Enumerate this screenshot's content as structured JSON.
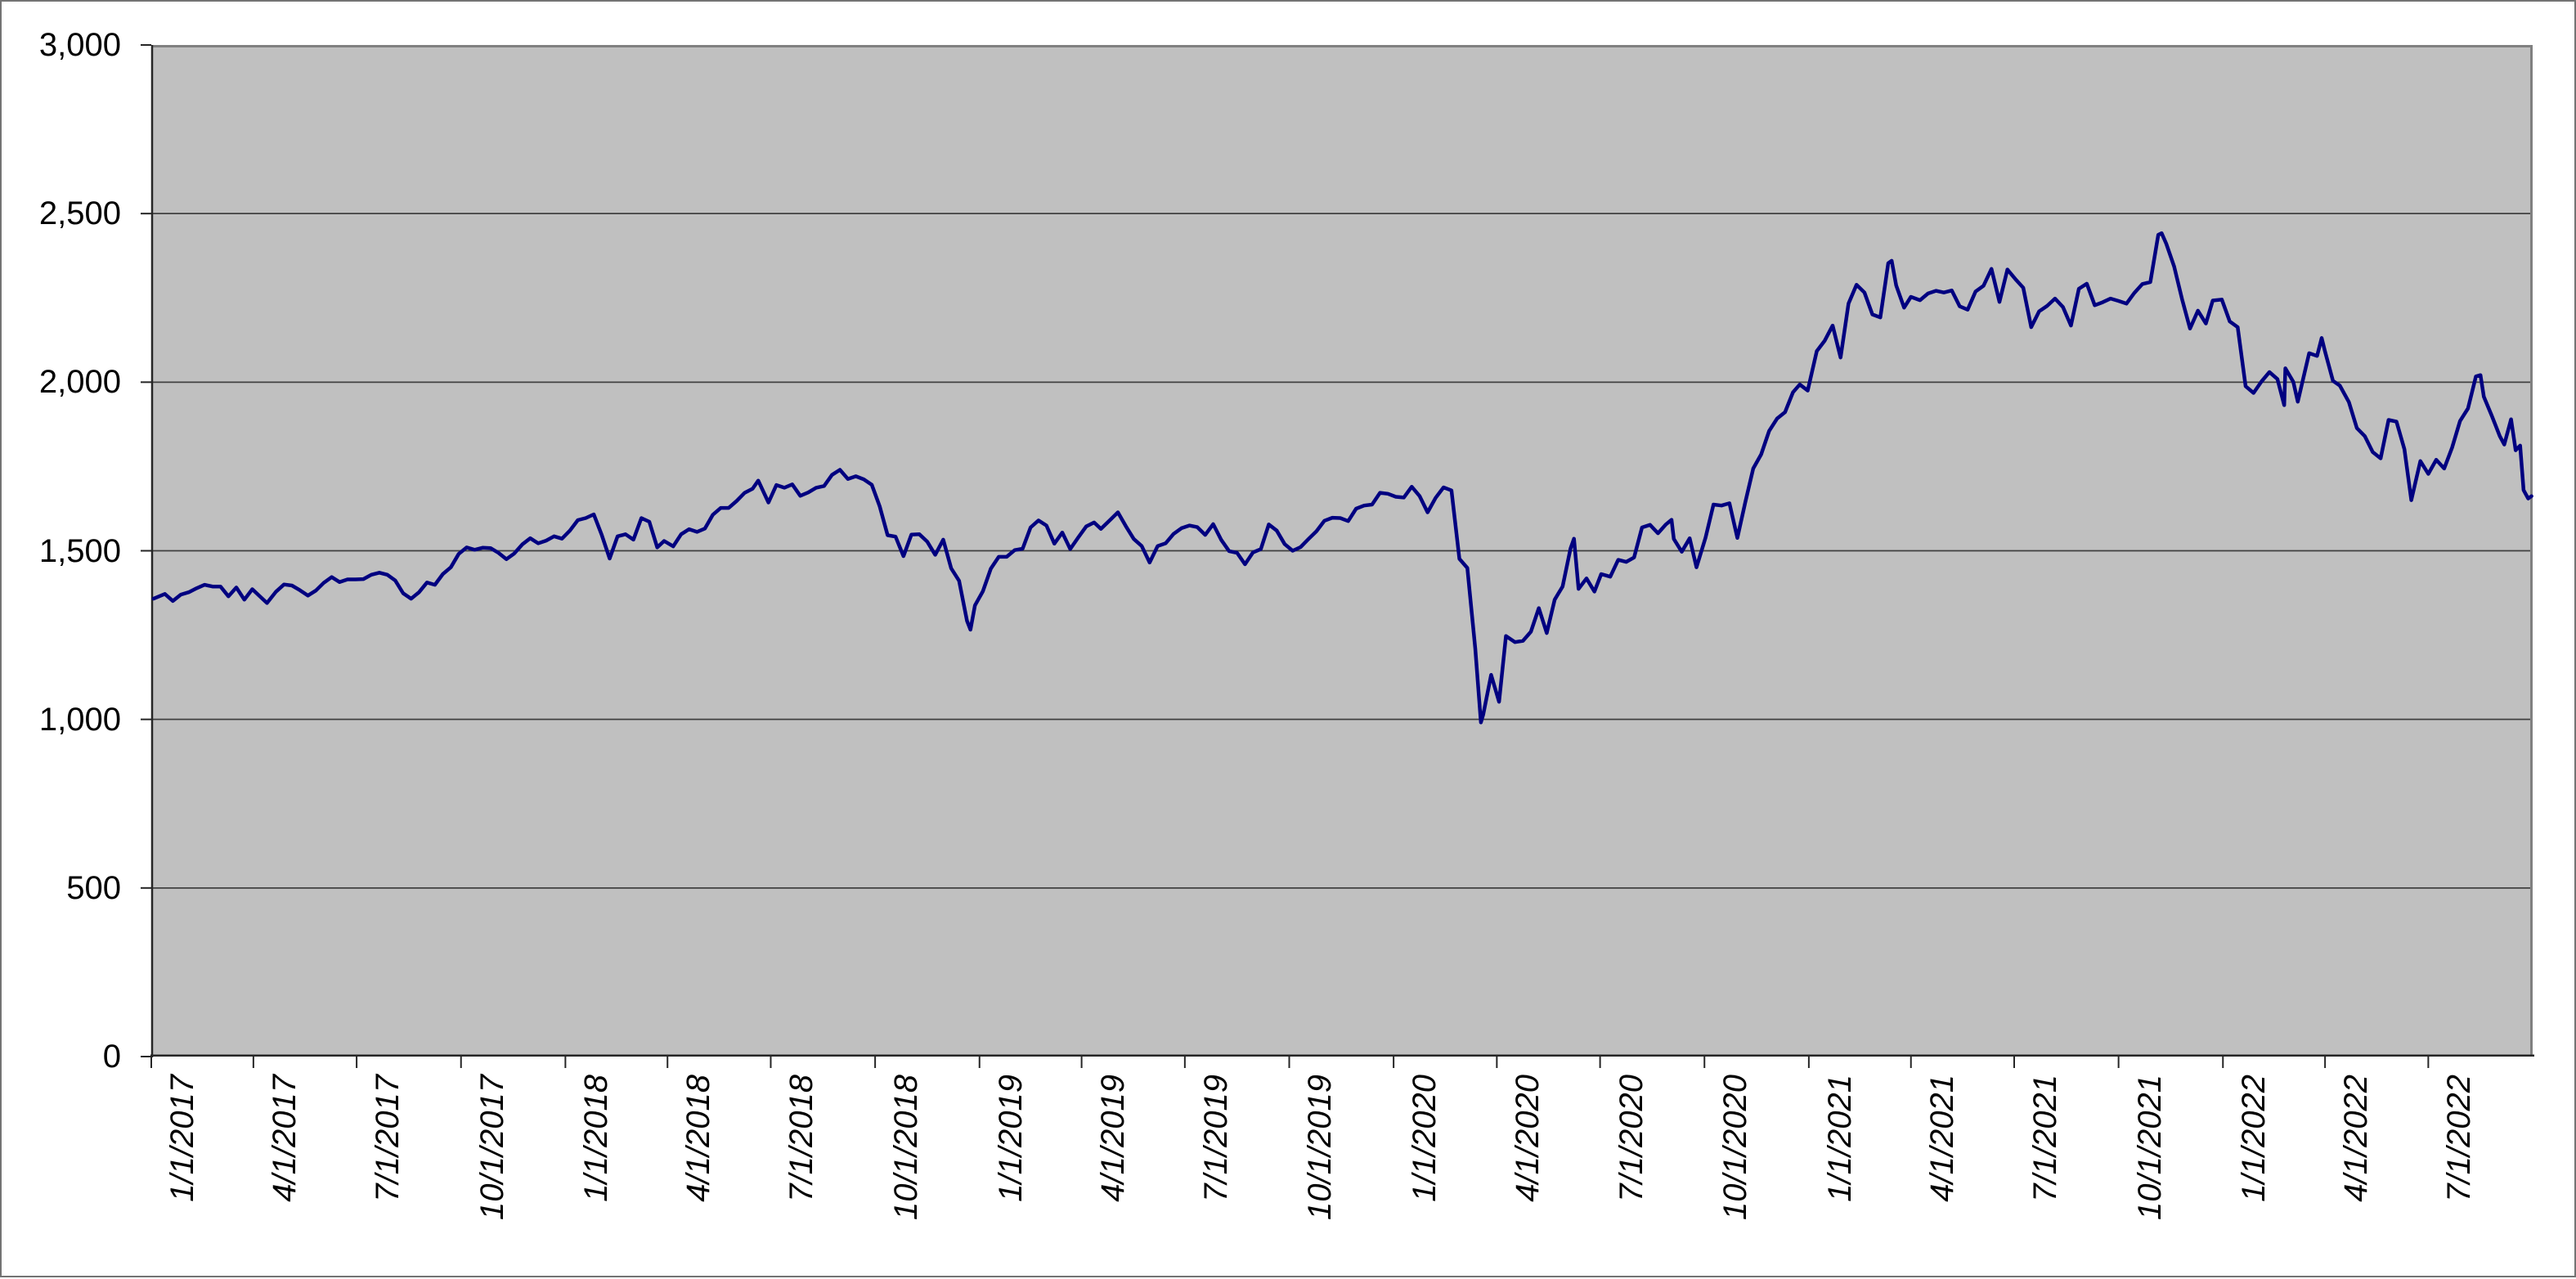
{
  "page": {
    "background": "#FFFFFF",
    "border_color": "#737373"
  },
  "chart_data": {
    "type": "line",
    "title": "",
    "legend": "none",
    "grid": "horizontal",
    "plot_background": "#C0C0C0",
    "plot_border_color": "#808080",
    "axis_color": "#262626",
    "gridline_color": "#404040",
    "line_color": "#000080",
    "x_axis": {
      "start": "1/1/2017",
      "end": "10/1/2022",
      "tick_labels": [
        "1/1/2017",
        "4/1/2017",
        "7/1/2017",
        "10/1/2017",
        "1/1/2018",
        "4/1/2018",
        "7/1/2018",
        "10/1/2018",
        "1/1/2019",
        "4/1/2019",
        "7/1/2019",
        "10/1/2019",
        "1/1/2020",
        "4/1/2020",
        "7/1/2020",
        "10/1/2020",
        "1/1/2021",
        "4/1/2021",
        "7/1/2021",
        "10/1/2021",
        "1/1/2022",
        "4/1/2022",
        "7/1/2022"
      ]
    },
    "y_axis": {
      "min": 0,
      "max": 3000,
      "interval": 500,
      "tick_labels": [
        "3,000",
        "2,500",
        "2,000",
        "1,500",
        "1,000",
        "500",
        "0"
      ]
    },
    "points": [
      [
        "1/3/2017",
        1358
      ],
      [
        "1/13/2017",
        1372
      ],
      [
        "1/20/2017",
        1351
      ],
      [
        "1/27/2017",
        1370
      ],
      [
        "2/3/2017",
        1377
      ],
      [
        "2/10/2017",
        1389
      ],
      [
        "2/17/2017",
        1399
      ],
      [
        "2/24/2017",
        1394
      ],
      [
        "3/3/2017",
        1394
      ],
      [
        "3/10/2017",
        1365
      ],
      [
        "3/17/2017",
        1391
      ],
      [
        "3/24/2017",
        1355
      ],
      [
        "3/31/2017",
        1386
      ],
      [
        "4/7/2017",
        1364
      ],
      [
        "4/13/2017",
        1345
      ],
      [
        "4/21/2017",
        1379
      ],
      [
        "4/28/2017",
        1400
      ],
      [
        "5/5/2017",
        1397
      ],
      [
        "5/12/2017",
        1383
      ],
      [
        "5/19/2017",
        1367
      ],
      [
        "5/26/2017",
        1382
      ],
      [
        "6/2/2017",
        1405
      ],
      [
        "6/9/2017",
        1422
      ],
      [
        "6/16/2017",
        1407
      ],
      [
        "6/23/2017",
        1415
      ],
      [
        "6/30/2017",
        1415
      ],
      [
        "7/7/2017",
        1416
      ],
      [
        "7/14/2017",
        1429
      ],
      [
        "7/21/2017",
        1435
      ],
      [
        "7/28/2017",
        1429
      ],
      [
        "8/4/2017",
        1412
      ],
      [
        "8/11/2017",
        1374
      ],
      [
        "8/18/2017",
        1358
      ],
      [
        "8/25/2017",
        1377
      ],
      [
        "9/1/2017",
        1406
      ],
      [
        "9/8/2017",
        1399
      ],
      [
        "9/15/2017",
        1431
      ],
      [
        "9/22/2017",
        1451
      ],
      [
        "9/29/2017",
        1491
      ],
      [
        "10/6/2017",
        1510
      ],
      [
        "10/13/2017",
        1503
      ],
      [
        "10/20/2017",
        1509
      ],
      [
        "10/27/2017",
        1508
      ],
      [
        "11/3/2017",
        1494
      ],
      [
        "11/10/2017",
        1475
      ],
      [
        "11/17/2017",
        1492
      ],
      [
        "11/24/2017",
        1519
      ],
      [
        "12/1/2017",
        1537
      ],
      [
        "12/8/2017",
        1522
      ],
      [
        "12/15/2017",
        1530
      ],
      [
        "12/22/2017",
        1543
      ],
      [
        "12/29/2017",
        1536
      ],
      [
        "1/5/2018",
        1560
      ],
      [
        "1/12/2018",
        1591
      ],
      [
        "1/19/2018",
        1597
      ],
      [
        "1/26/2018",
        1608
      ],
      [
        "2/2/2018",
        1547
      ],
      [
        "2/9/2018",
        1477
      ],
      [
        "2/16/2018",
        1543
      ],
      [
        "2/23/2018",
        1549
      ],
      [
        "3/2/2018",
        1533
      ],
      [
        "3/9/2018",
        1597
      ],
      [
        "3/16/2018",
        1586
      ],
      [
        "3/23/2018",
        1510
      ],
      [
        "3/29/2018",
        1529
      ],
      [
        "4/6/2018",
        1513
      ],
      [
        "4/13/2018",
        1549
      ],
      [
        "4/20/2018",
        1564
      ],
      [
        "4/27/2018",
        1556
      ],
      [
        "5/4/2018",
        1566
      ],
      [
        "5/11/2018",
        1607
      ],
      [
        "5/18/2018",
        1627
      ],
      [
        "5/25/2018",
        1627
      ],
      [
        "6/1/2018",
        1648
      ],
      [
        "6/8/2018",
        1672
      ],
      [
        "6/15/2018",
        1684
      ],
      [
        "6/20/2018",
        1708
      ],
      [
        "6/29/2018",
        1643
      ],
      [
        "7/6/2018",
        1695
      ],
      [
        "7/13/2018",
        1687
      ],
      [
        "7/20/2018",
        1697
      ],
      [
        "7/27/2018",
        1663
      ],
      [
        "8/3/2018",
        1673
      ],
      [
        "8/10/2018",
        1687
      ],
      [
        "8/17/2018",
        1692
      ],
      [
        "8/24/2018",
        1725
      ],
      [
        "8/31/2018",
        1740
      ],
      [
        "9/7/2018",
        1713
      ],
      [
        "9/14/2018",
        1721
      ],
      [
        "9/21/2018",
        1712
      ],
      [
        "9/28/2018",
        1696
      ],
      [
        "10/5/2018",
        1632
      ],
      [
        "10/12/2018",
        1546
      ],
      [
        "10/19/2018",
        1542
      ],
      [
        "10/26/2018",
        1484
      ],
      [
        "11/2/2018",
        1548
      ],
      [
        "11/9/2018",
        1549
      ],
      [
        "11/16/2018",
        1527
      ],
      [
        "11/23/2018",
        1488
      ],
      [
        "11/30/2018",
        1533
      ],
      [
        "12/7/2018",
        1448
      ],
      [
        "12/14/2018",
        1411
      ],
      [
        "12/21/2018",
        1292
      ],
      [
        "12/24/2018",
        1266
      ],
      [
        "12/28/2018",
        1338
      ],
      [
        "1/4/2019",
        1380
      ],
      [
        "1/11/2019",
        1447
      ],
      [
        "1/18/2019",
        1482
      ],
      [
        "1/25/2019",
        1482
      ],
      [
        "2/1/2019",
        1502
      ],
      [
        "2/8/2019",
        1506
      ],
      [
        "2/15/2019",
        1569
      ],
      [
        "2/22/2019",
        1590
      ],
      [
        "3/1/2019",
        1575
      ],
      [
        "3/8/2019",
        1521
      ],
      [
        "3/15/2019",
        1554
      ],
      [
        "3/22/2019",
        1505
      ],
      [
        "3/29/2019",
        1539
      ],
      [
        "4/5/2019",
        1572
      ],
      [
        "4/12/2019",
        1584
      ],
      [
        "4/18/2019",
        1565
      ],
      [
        "4/26/2019",
        1591
      ],
      [
        "5/3/2019",
        1614
      ],
      [
        "5/10/2019",
        1573
      ],
      [
        "5/17/2019",
        1535
      ],
      [
        "5/24/2019",
        1514
      ],
      [
        "5/31/2019",
        1465
      ],
      [
        "6/7/2019",
        1514
      ],
      [
        "6/14/2019",
        1522
      ],
      [
        "6/21/2019",
        1550
      ],
      [
        "6/28/2019",
        1567
      ],
      [
        "7/5/2019",
        1575
      ],
      [
        "7/12/2019",
        1570
      ],
      [
        "7/19/2019",
        1547
      ],
      [
        "7/26/2019",
        1579
      ],
      [
        "8/2/2019",
        1533
      ],
      [
        "8/9/2019",
        1499
      ],
      [
        "8/16/2019",
        1494
      ],
      [
        "8/23/2019",
        1460
      ],
      [
        "8/30/2019",
        1495
      ],
      [
        "9/6/2019",
        1505
      ],
      [
        "9/13/2019",
        1578
      ],
      [
        "9/20/2019",
        1560
      ],
      [
        "9/27/2019",
        1520
      ],
      [
        "10/4/2019",
        1500
      ],
      [
        "10/11/2019",
        1511
      ],
      [
        "10/18/2019",
        1535
      ],
      [
        "10/25/2019",
        1558
      ],
      [
        "11/1/2019",
        1589
      ],
      [
        "11/8/2019",
        1598
      ],
      [
        "11/15/2019",
        1597
      ],
      [
        "11/22/2019",
        1588
      ],
      [
        "11/29/2019",
        1625
      ],
      [
        "12/6/2019",
        1634
      ],
      [
        "12/13/2019",
        1637
      ],
      [
        "12/20/2019",
        1672
      ],
      [
        "12/27/2019",
        1669
      ],
      [
        "1/3/2020",
        1660
      ],
      [
        "1/10/2020",
        1658
      ],
      [
        "1/17/2020",
        1690
      ],
      [
        "1/24/2020",
        1662
      ],
      [
        "1/31/2020",
        1614
      ],
      [
        "2/7/2020",
        1657
      ],
      [
        "2/14/2020",
        1688
      ],
      [
        "2/21/2020",
        1679
      ],
      [
        "2/28/2020",
        1476
      ],
      [
        "3/6/2020",
        1449
      ],
      [
        "3/13/2020",
        1210
      ],
      [
        "3/18/2020",
        991
      ],
      [
        "3/20/2020",
        1014
      ],
      [
        "3/27/2020",
        1132
      ],
      [
        "4/3/2020",
        1052
      ],
      [
        "4/9/2020",
        1247
      ],
      [
        "4/17/2020",
        1229
      ],
      [
        "4/24/2020",
        1233
      ],
      [
        "5/1/2020",
        1260
      ],
      [
        "5/8/2020",
        1330
      ],
      [
        "5/15/2020",
        1256
      ],
      [
        "5/22/2020",
        1355
      ],
      [
        "5/29/2020",
        1394
      ],
      [
        "6/5/2020",
        1507
      ],
      [
        "6/8/2020",
        1536
      ],
      [
        "6/12/2020",
        1387
      ],
      [
        "6/19/2020",
        1418
      ],
      [
        "6/26/2020",
        1379
      ],
      [
        "7/2/2020",
        1431
      ],
      [
        "7/10/2020",
        1423
      ],
      [
        "7/17/2020",
        1473
      ],
      [
        "7/24/2020",
        1467
      ],
      [
        "7/31/2020",
        1480
      ],
      [
        "8/7/2020",
        1569
      ],
      [
        "8/14/2020",
        1577
      ],
      [
        "8/21/2020",
        1552
      ],
      [
        "8/28/2020",
        1578
      ],
      [
        "9/2/2020",
        1592
      ],
      [
        "9/4/2020",
        1535
      ],
      [
        "9/11/2020",
        1497
      ],
      [
        "9/18/2020",
        1537
      ],
      [
        "9/24/2020",
        1451
      ],
      [
        "10/2/2020",
        1539
      ],
      [
        "10/9/2020",
        1637
      ],
      [
        "10/16/2020",
        1634
      ],
      [
        "10/23/2020",
        1641
      ],
      [
        "10/30/2020",
        1538
      ],
      [
        "11/6/2020",
        1644
      ],
      [
        "11/13/2020",
        1744
      ],
      [
        "11/20/2020",
        1786
      ],
      [
        "11/27/2020",
        1855
      ],
      [
        "12/4/2020",
        1892
      ],
      [
        "12/11/2020",
        1911
      ],
      [
        "12/18/2020",
        1970
      ],
      [
        "12/24/2020",
        1993
      ],
      [
        "12/31/2020",
        1975
      ],
      [
        "1/8/2021",
        2092
      ],
      [
        "1/15/2021",
        2123
      ],
      [
        "1/22/2021",
        2168
      ],
      [
        "1/29/2021",
        2073
      ],
      [
        "2/5/2021",
        2233
      ],
      [
        "2/12/2021",
        2289
      ],
      [
        "2/19/2021",
        2266
      ],
      [
        "2/26/2021",
        2201
      ],
      [
        "3/5/2021",
        2192
      ],
      [
        "3/12/2021",
        2353
      ],
      [
        "3/15/2021",
        2360
      ],
      [
        "3/19/2021",
        2287
      ],
      [
        "3/26/2021",
        2221
      ],
      [
        "4/1/2021",
        2253
      ],
      [
        "4/9/2021",
        2243
      ],
      [
        "4/16/2021",
        2263
      ],
      [
        "4/23/2021",
        2271
      ],
      [
        "4/30/2021",
        2266
      ],
      [
        "5/7/2021",
        2272
      ],
      [
        "5/14/2021",
        2225
      ],
      [
        "5/21/2021",
        2215
      ],
      [
        "5/28/2021",
        2269
      ],
      [
        "6/4/2021",
        2286
      ],
      [
        "6/11/2021",
        2336
      ],
      [
        "6/18/2021",
        2238
      ],
      [
        "6/25/2021",
        2334
      ],
      [
        "7/2/2021",
        2306
      ],
      [
        "7/9/2021",
        2280
      ],
      [
        "7/16/2021",
        2163
      ],
      [
        "7/23/2021",
        2210
      ],
      [
        "7/30/2021",
        2226
      ],
      [
        "8/6/2021",
        2248
      ],
      [
        "8/13/2021",
        2223
      ],
      [
        "8/20/2021",
        2168
      ],
      [
        "8/27/2021",
        2277
      ],
      [
        "9/3/2021",
        2292
      ],
      [
        "9/10/2021",
        2228
      ],
      [
        "9/17/2021",
        2237
      ],
      [
        "9/24/2021",
        2248
      ],
      [
        "10/1/2021",
        2241
      ],
      [
        "10/8/2021",
        2233
      ],
      [
        "10/15/2021",
        2265
      ],
      [
        "10/22/2021",
        2291
      ],
      [
        "10/29/2021",
        2297
      ],
      [
        "11/5/2021",
        2437
      ],
      [
        "11/8/2021",
        2442
      ],
      [
        "11/12/2021",
        2411
      ],
      [
        "11/19/2021",
        2343
      ],
      [
        "11/26/2021",
        2246
      ],
      [
        "12/3/2021",
        2159
      ],
      [
        "12/10/2021",
        2212
      ],
      [
        "12/17/2021",
        2174
      ],
      [
        "12/23/2021",
        2242
      ],
      [
        "12/31/2021",
        2245
      ],
      [
        "1/7/2022",
        2180
      ],
      [
        "1/14/2022",
        2163
      ],
      [
        "1/21/2022",
        1988
      ],
      [
        "1/28/2022",
        1968
      ],
      [
        "2/4/2022",
        2002
      ],
      [
        "2/11/2022",
        2030
      ],
      [
        "2/18/2022",
        2009
      ],
      [
        "2/24/2022",
        1932
      ],
      [
        "2/25/2022",
        2041
      ],
      [
        "3/4/2022",
        2001
      ],
      [
        "3/8/2022",
        1942
      ],
      [
        "3/18/2022",
        2086
      ],
      [
        "3/25/2022",
        2078
      ],
      [
        "3/29/2022",
        2131
      ],
      [
        "4/1/2022",
        2091
      ],
      [
        "4/8/2022",
        2004
      ],
      [
        "4/14/2022",
        1990
      ],
      [
        "4/22/2022",
        1941
      ],
      [
        "4/29/2022",
        1864
      ],
      [
        "5/6/2022",
        1840
      ],
      [
        "5/13/2022",
        1793
      ],
      [
        "5/20/2022",
        1774
      ],
      [
        "5/27/2022",
        1888
      ],
      [
        "6/3/2022",
        1883
      ],
      [
        "6/10/2022",
        1801
      ],
      [
        "6/16/2022",
        1650
      ],
      [
        "6/24/2022",
        1766
      ],
      [
        "7/1/2022",
        1728
      ],
      [
        "7/8/2022",
        1770
      ],
      [
        "7/15/2022",
        1744
      ],
      [
        "7/22/2022",
        1806
      ],
      [
        "7/29/2022",
        1885
      ],
      [
        "8/5/2022",
        1922
      ],
      [
        "8/12/2022",
        2017
      ],
      [
        "8/16/2022",
        2021
      ],
      [
        "8/19/2022",
        1957
      ],
      [
        "8/26/2022",
        1900
      ],
      [
        "9/2/2022",
        1840
      ],
      [
        "9/6/2022",
        1815
      ],
      [
        "9/12/2022",
        1890
      ],
      [
        "9/16/2022",
        1798
      ],
      [
        "9/20/2022",
        1812
      ],
      [
        "9/23/2022",
        1680
      ],
      [
        "9/27/2022",
        1655
      ],
      [
        "9/30/2022",
        1662
      ]
    ]
  }
}
